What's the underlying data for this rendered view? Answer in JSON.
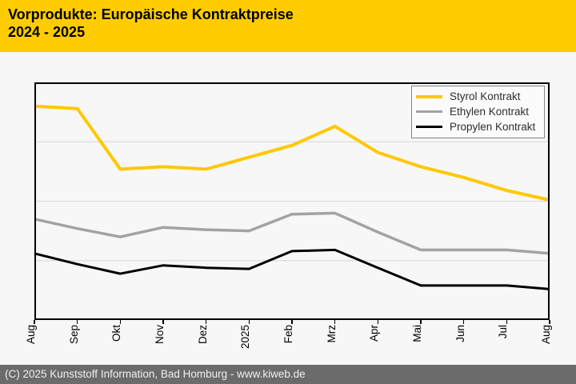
{
  "header": {
    "title_line1": "Vorprodukte: Europäische Kontraktpreise",
    "title_line2": "2024 - 2025",
    "background_color": "#ffcc00",
    "text_color": "#000000"
  },
  "footer": {
    "text": "(C) 2025 Kunststoff Information, Bad Homburg - www.kiweb.de",
    "background_color": "#6b6b6b",
    "text_color": "#efefef"
  },
  "chart_data": {
    "type": "line",
    "title": "Vorprodukte: Europäische Kontraktpreise 2024 - 2025",
    "xlabel": "",
    "ylabel": "",
    "x_tick_labels": [
      "Aug",
      "Sep",
      "Okt",
      "Nov",
      "Dez",
      "2025",
      "Feb",
      "Mrz",
      "Apr",
      "Mai",
      "Jun",
      "Jul",
      "Aug"
    ],
    "x_tick_label_rotation_deg": -90,
    "y_axis_labels_visible": false,
    "ylim": [
      0,
      100
    ],
    "y_unit": "relative scale (y-axis unlabeled in chart)",
    "gridlines_at": [
      25,
      50,
      75
    ],
    "grid": "horizontal",
    "plot_background": "#f7f7f7",
    "gridline_color": "#dcdcdc",
    "axis_border_color": "#000000",
    "legend_position": "top-right",
    "series": [
      {
        "name": "Styrol Kontrakt",
        "color": "#ffc800",
        "line_width": 4,
        "values": [
          90,
          89,
          63.5,
          64.5,
          63.5,
          68.5,
          73.5,
          81.5,
          70.5,
          64.5,
          60,
          54.5,
          50.5
        ]
      },
      {
        "name": "Ethylen Kontrakt",
        "color": "#a3a3a3",
        "line_width": 3.5,
        "values": [
          42.5,
          38.5,
          35,
          39,
          38,
          37.5,
          44.5,
          45,
          37,
          29.5,
          29.5,
          29.5,
          28
        ]
      },
      {
        "name": "Propylen Kontrakt",
        "color": "#000000",
        "line_width": 3,
        "values": [
          28,
          23.5,
          19.5,
          23,
          22,
          21.5,
          29,
          29.5,
          22,
          14.5,
          14.5,
          14.5,
          13
        ]
      }
    ]
  }
}
